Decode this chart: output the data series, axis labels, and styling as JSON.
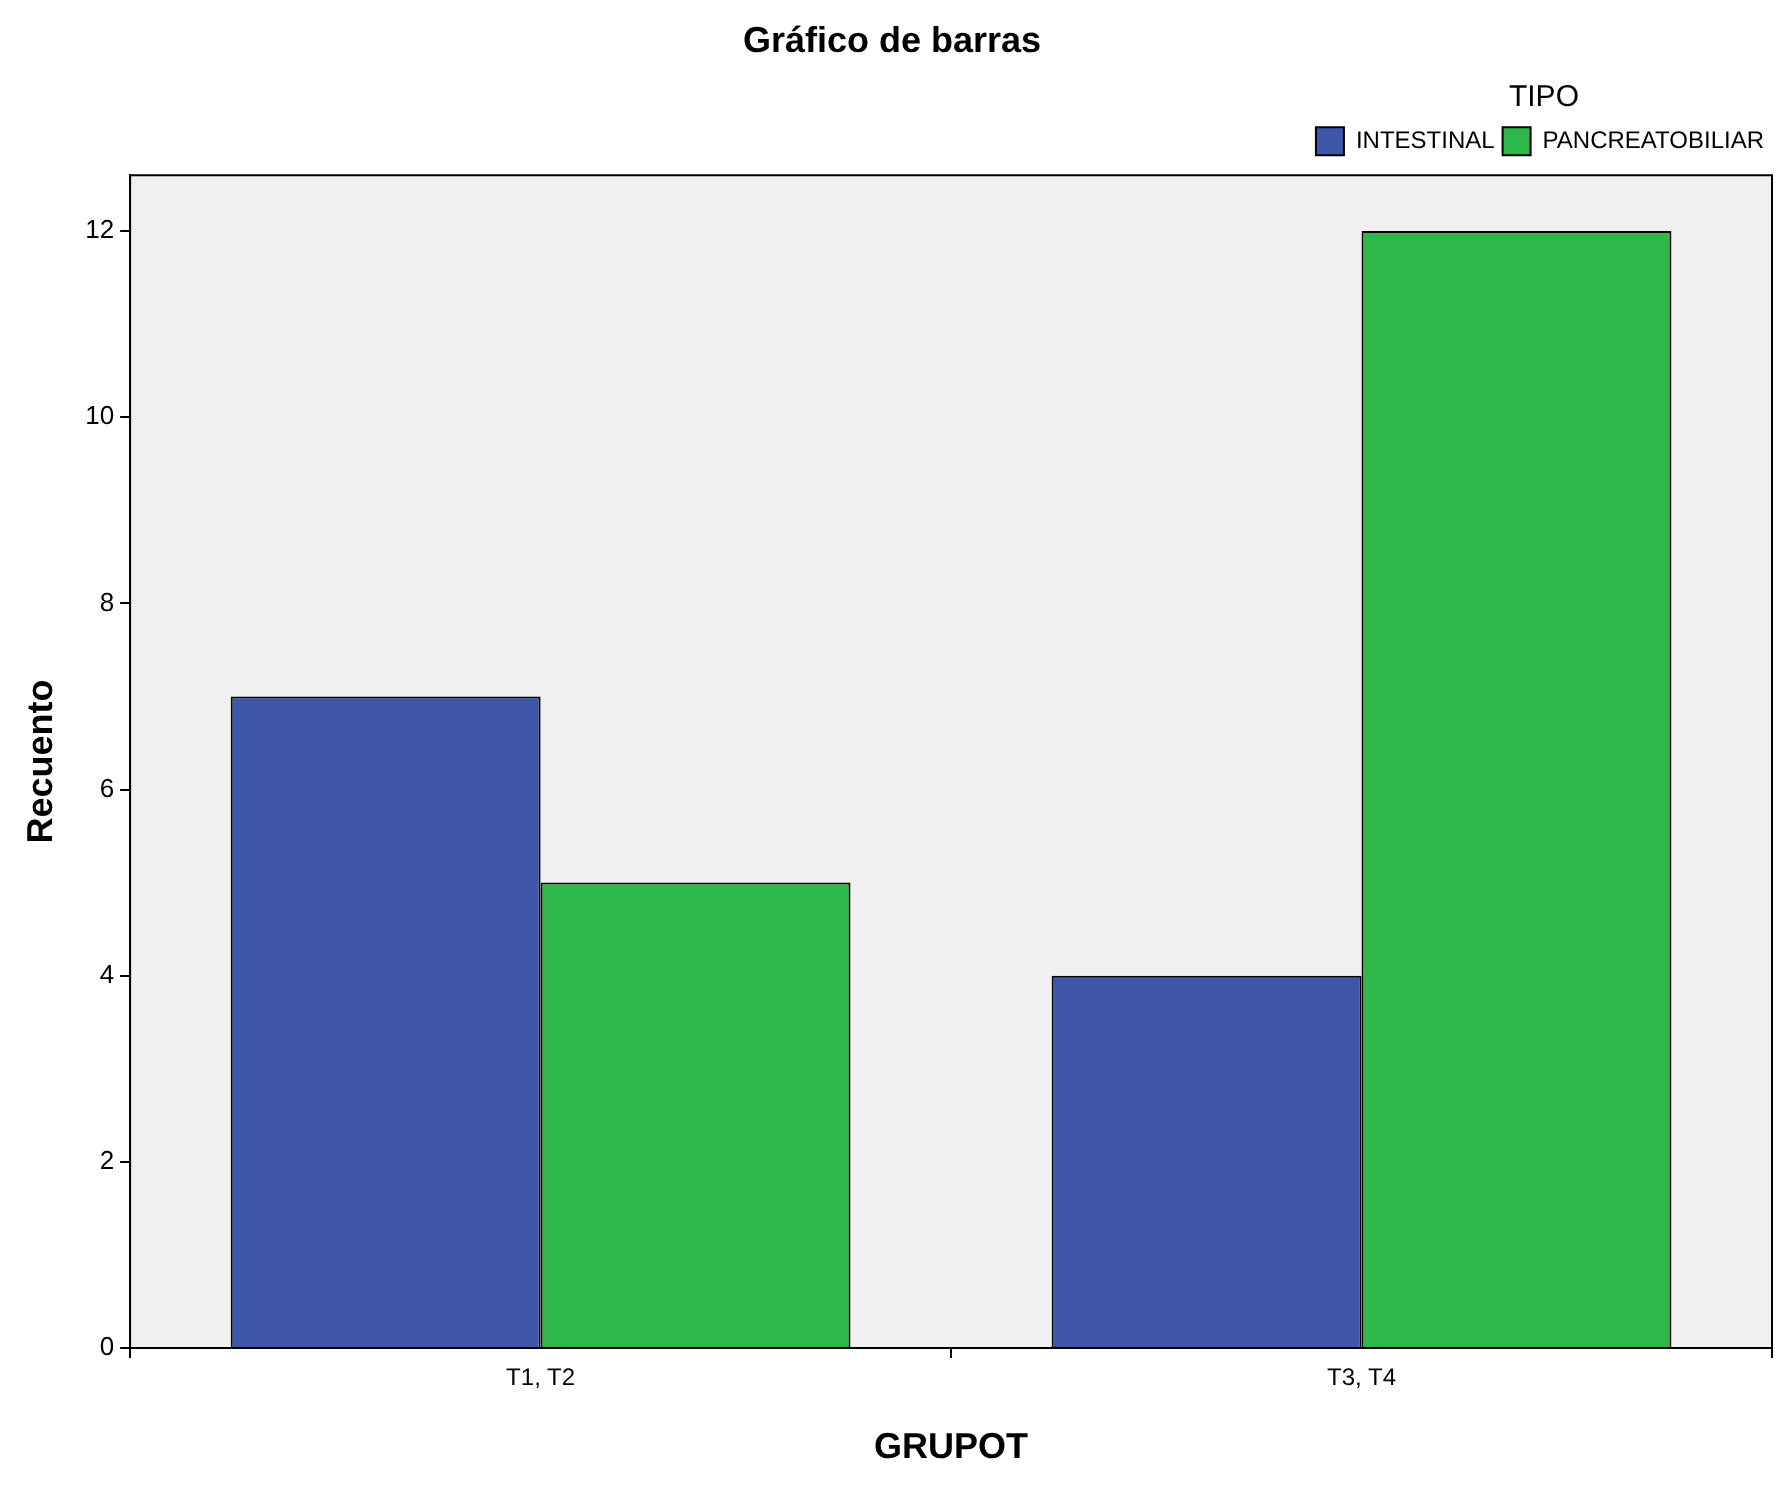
{
  "chart_data": {
    "type": "bar",
    "title": "Gráfico de barras",
    "xlabel": "GRUPOT",
    "ylabel": "Recuento",
    "legend_title": "TIPO",
    "categories": [
      "T1, T2",
      "T3, T4"
    ],
    "series": [
      {
        "name": "INTESTINAL",
        "color": "#3f57a8",
        "values": [
          7,
          4
        ]
      },
      {
        "name": "PANCREATOBILIAR",
        "color": "#2fb84a",
        "values": [
          5,
          12
        ]
      }
    ],
    "ylim": [
      0,
      12.6
    ],
    "yticks": [
      0,
      2,
      4,
      6,
      8,
      10,
      12
    ],
    "grid": false,
    "legend": "top right"
  }
}
